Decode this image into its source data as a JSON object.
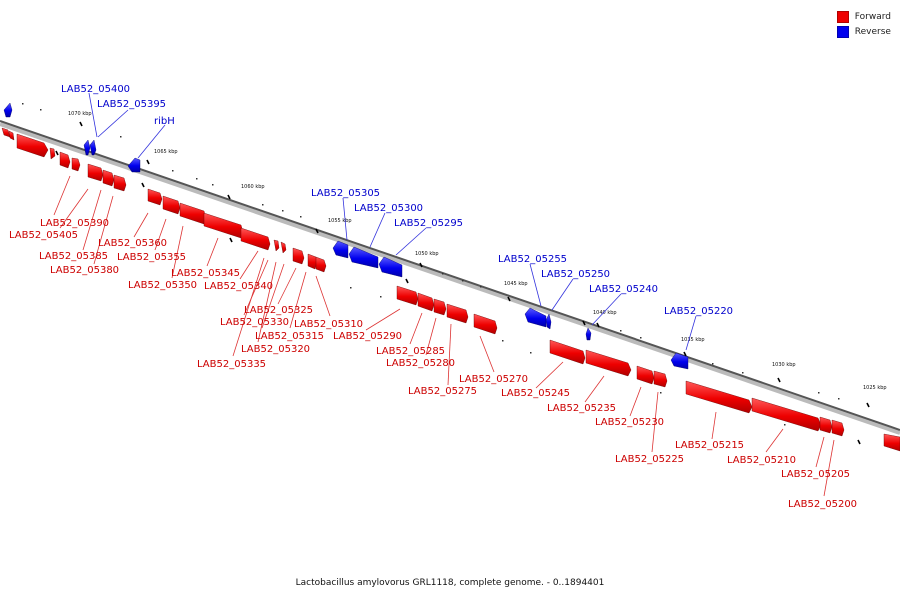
{
  "legend": {
    "forward_label": "Forward",
    "reverse_label": "Reverse",
    "forward_color": "#ee0000",
    "reverse_color": "#0000ee"
  },
  "caption": "Lactobacillus amylovorus GRL1118, complete genome. - 0..1894401",
  "ticks": [
    "1070 kbp",
    "1065 kbp",
    "1060 kbp",
    "1055 kbp",
    "1050 kbp",
    "1045 kbp",
    "1040 kbp",
    "1035 kbp",
    "1030 kbp",
    "1025 kbp"
  ],
  "genes": [
    {
      "label": "LAB52_05400",
      "strand": "reverse"
    },
    {
      "label": "LAB52_05395",
      "strand": "reverse"
    },
    {
      "label": "ribH",
      "strand": "reverse"
    },
    {
      "label": "LAB52_05390",
      "strand": "forward"
    },
    {
      "label": "LAB52_05405",
      "strand": "forward"
    },
    {
      "label": "LAB52_05385",
      "strand": "forward"
    },
    {
      "label": "LAB52_05380",
      "strand": "forward"
    },
    {
      "label": "LAB52_05360",
      "strand": "forward"
    },
    {
      "label": "LAB52_05355",
      "strand": "forward"
    },
    {
      "label": "LAB52_05350",
      "strand": "forward"
    },
    {
      "label": "LAB52_05345",
      "strand": "forward"
    },
    {
      "label": "LAB52_05340",
      "strand": "forward"
    },
    {
      "label": "LAB52_05305",
      "strand": "reverse"
    },
    {
      "label": "LAB52_05300",
      "strand": "reverse"
    },
    {
      "label": "LAB52_05295",
      "strand": "reverse"
    },
    {
      "label": "LAB52_05325",
      "strand": "forward"
    },
    {
      "label": "LAB52_05330",
      "strand": "forward"
    },
    {
      "label": "LAB52_05310",
      "strand": "forward"
    },
    {
      "label": "LAB52_05315",
      "strand": "forward"
    },
    {
      "label": "LAB52_05320",
      "strand": "forward"
    },
    {
      "label": "LAB52_05335",
      "strand": "forward"
    },
    {
      "label": "LAB52_05290",
      "strand": "forward"
    },
    {
      "label": "LAB52_05285",
      "strand": "forward"
    },
    {
      "label": "LAB52_05280",
      "strand": "forward"
    },
    {
      "label": "LAB52_05275",
      "strand": "forward"
    },
    {
      "label": "LAB52_05270",
      "strand": "forward"
    },
    {
      "label": "LAB52_05255",
      "strand": "reverse"
    },
    {
      "label": "LAB52_05250",
      "strand": "reverse"
    },
    {
      "label": "LAB52_05240",
      "strand": "reverse"
    },
    {
      "label": "LAB52_05220",
      "strand": "reverse"
    },
    {
      "label": "LAB52_05245",
      "strand": "forward"
    },
    {
      "label": "LAB52_05235",
      "strand": "forward"
    },
    {
      "label": "LAB52_05230",
      "strand": "forward"
    },
    {
      "label": "LAB52_05225",
      "strand": "forward"
    },
    {
      "label": "LAB52_05215",
      "strand": "forward"
    },
    {
      "label": "LAB52_05210",
      "strand": "forward"
    },
    {
      "label": "LAB52_05205",
      "strand": "forward"
    },
    {
      "label": "LAB52_05200",
      "strand": "forward"
    }
  ]
}
